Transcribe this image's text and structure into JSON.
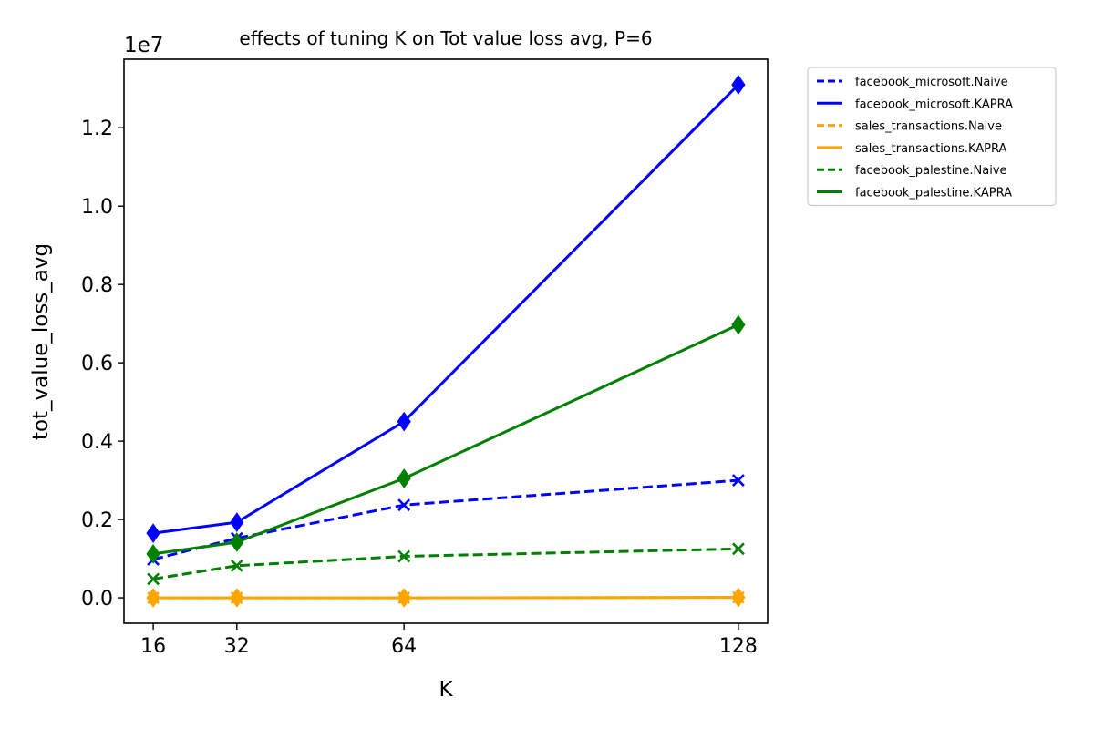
{
  "chart_data": {
    "type": "line",
    "title": "effects of tuning K on Tot value loss avg, P=6",
    "xlabel": "K",
    "ylabel": "tot_value_loss_avg",
    "offset_text": "1e7",
    "x": [
      16,
      32,
      64,
      128
    ],
    "x_tick_labels": [
      "16",
      "32",
      "64",
      "128"
    ],
    "xlim": [
      10.4,
      133.6
    ],
    "ylim": [
      -0.065,
      1.375
    ],
    "y_ticks": [
      0.0,
      0.2,
      0.4,
      0.6,
      0.8,
      1.0,
      1.2
    ],
    "y_tick_labels": [
      "0.0",
      "0.2",
      "0.4",
      "0.6",
      "0.8",
      "1.0",
      "1.2"
    ],
    "y_scale_note": "values in units of 1e7",
    "grid": false,
    "legend_position": "outside-right",
    "series": [
      {
        "name": "facebook_microsoft.Naive",
        "color": "#0000ff",
        "linestyle": "dashed",
        "marker": "x",
        "values": [
          0.098,
          0.152,
          0.237,
          0.3
        ]
      },
      {
        "name": "facebook_microsoft.KAPRA",
        "color": "#0000ff",
        "linestyle": "solid",
        "marker": "diamond",
        "values": [
          0.165,
          0.193,
          0.45,
          1.31
        ]
      },
      {
        "name": "sales_transactions.Naive",
        "color": "#ffa500",
        "linestyle": "dashed",
        "marker": "x",
        "values": [
          0.0,
          0.0,
          0.0,
          0.001
        ]
      },
      {
        "name": "sales_transactions.KAPRA",
        "color": "#ffa500",
        "linestyle": "solid",
        "marker": "diamond",
        "values": [
          0.0,
          0.0,
          0.0,
          0.001
        ]
      },
      {
        "name": "facebook_palestine.Naive",
        "color": "#008000",
        "linestyle": "dashed",
        "marker": "x",
        "values": [
          0.048,
          0.082,
          0.106,
          0.125
        ]
      },
      {
        "name": "facebook_palestine.KAPRA",
        "color": "#008000",
        "linestyle": "solid",
        "marker": "diamond",
        "values": [
          0.112,
          0.142,
          0.305,
          0.697
        ]
      }
    ]
  }
}
